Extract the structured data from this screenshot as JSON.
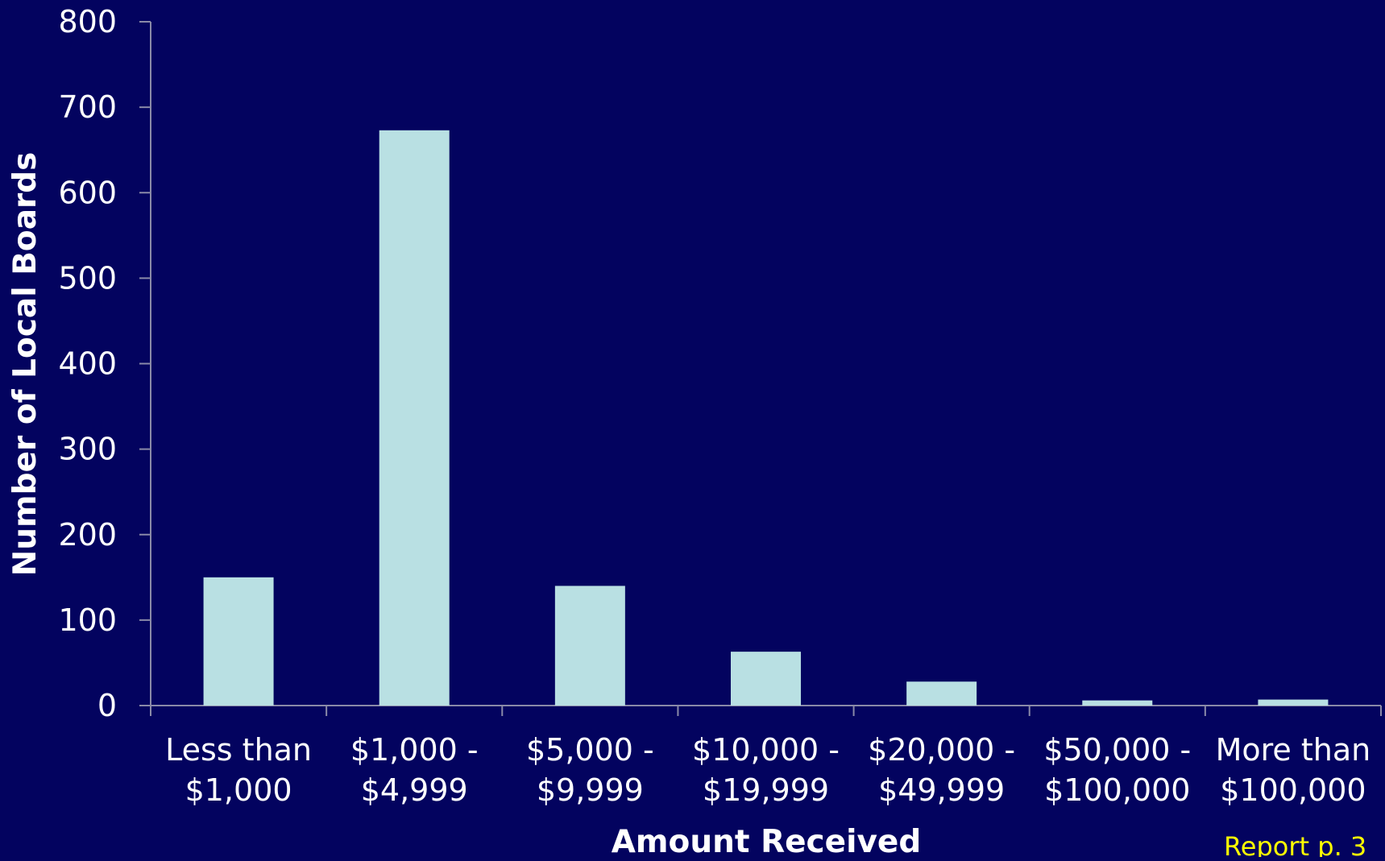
{
  "chart_data": {
    "type": "bar",
    "categories": [
      [
        "Less than",
        "$1,000"
      ],
      [
        "$1,000 -",
        "$4,999"
      ],
      [
        "$5,000 -",
        "$9,999"
      ],
      [
        "$10,000 -",
        "$19,999"
      ],
      [
        "$20,000 -",
        "$49,999"
      ],
      [
        "$50,000 -",
        "$100,000"
      ],
      [
        "More than",
        "$100,000"
      ]
    ],
    "values": [
      150,
      673,
      140,
      63,
      28,
      6,
      7
    ],
    "title": "",
    "xlabel": "Amount Received",
    "ylabel": "Number of Local Boards",
    "ylim": [
      0,
      800
    ],
    "yticks": [
      0,
      100,
      200,
      300,
      400,
      500,
      600,
      700,
      800
    ],
    "grid": false,
    "legend": "none",
    "colors": {
      "background": "#03035f",
      "bar": "#b9e0e3",
      "axis": "#8a8aa8",
      "text": "#ffffff",
      "footnote": "#ffff00"
    }
  },
  "footnote": "Report p. 3"
}
